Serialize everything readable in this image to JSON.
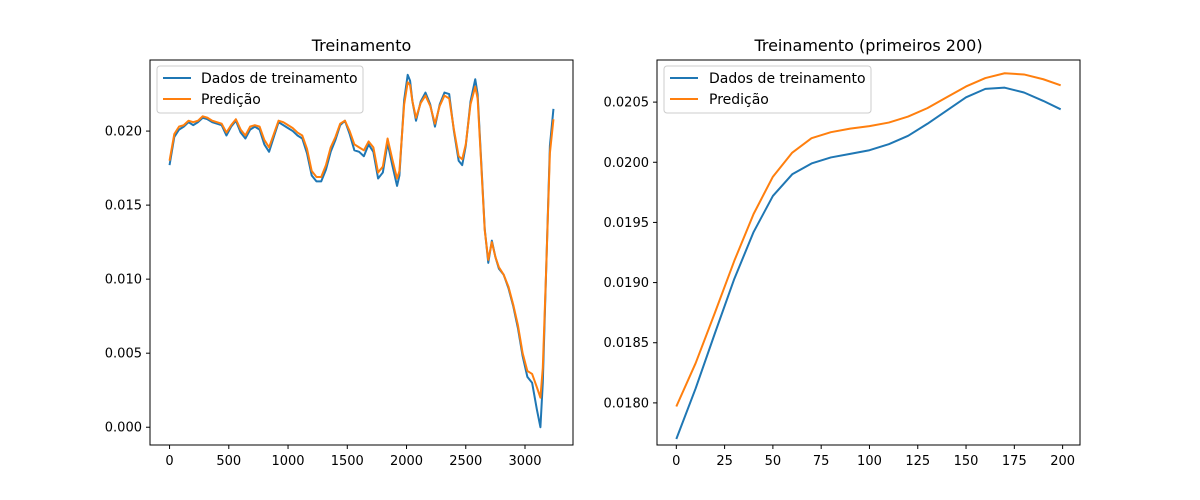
{
  "chart_data": [
    {
      "type": "line",
      "title": "Treinamento",
      "xlabel": "",
      "ylabel": "",
      "xlim": [
        -165,
        3405
      ],
      "ylim": [
        -0.0012,
        0.0248
      ],
      "xticks": [
        0,
        500,
        1000,
        1500,
        2000,
        2500,
        3000
      ],
      "xtick_labels": [
        "0",
        "500",
        "1000",
        "1500",
        "2000",
        "2500",
        "3000"
      ],
      "yticks": [
        0.0,
        0.005,
        0.01,
        0.015,
        0.02
      ],
      "ytick_labels": [
        "0.000",
        "0.005",
        "0.010",
        "0.015",
        "0.020"
      ],
      "grid": false,
      "legend_position": "top-left",
      "series": [
        {
          "name": "Dados de treinamento",
          "color": "#1f77b4",
          "x": [
            0,
            40,
            80,
            120,
            160,
            200,
            240,
            280,
            320,
            360,
            400,
            440,
            480,
            520,
            560,
            600,
            640,
            680,
            720,
            760,
            800,
            840,
            880,
            920,
            960,
            1000,
            1040,
            1080,
            1120,
            1160,
            1200,
            1240,
            1280,
            1320,
            1360,
            1400,
            1440,
            1480,
            1520,
            1560,
            1600,
            1640,
            1680,
            1720,
            1760,
            1800,
            1840,
            1880,
            1920,
            1940,
            1980,
            2010,
            2030,
            2050,
            2080,
            2120,
            2160,
            2200,
            2240,
            2280,
            2320,
            2360,
            2400,
            2440,
            2470,
            2500,
            2540,
            2580,
            2600,
            2630,
            2660,
            2690,
            2720,
            2750,
            2780,
            2820,
            2860,
            2900,
            2940,
            2980,
            3020,
            3060,
            3100,
            3130,
            3150,
            3180,
            3210,
            3240
          ],
          "y": [
            0.0177,
            0.0196,
            0.0201,
            0.0203,
            0.0206,
            0.0204,
            0.0206,
            0.0209,
            0.0208,
            0.0206,
            0.0205,
            0.0204,
            0.0197,
            0.0203,
            0.0207,
            0.0199,
            0.0195,
            0.0201,
            0.0203,
            0.0201,
            0.0191,
            0.0186,
            0.0196,
            0.0206,
            0.0204,
            0.0202,
            0.02,
            0.0197,
            0.0195,
            0.0185,
            0.017,
            0.0166,
            0.0166,
            0.0174,
            0.0186,
            0.0194,
            0.0204,
            0.0207,
            0.0198,
            0.0187,
            0.0186,
            0.0183,
            0.0191,
            0.0186,
            0.0168,
            0.0172,
            0.0192,
            0.0177,
            0.0163,
            0.017,
            0.0221,
            0.0238,
            0.0234,
            0.022,
            0.0207,
            0.022,
            0.0226,
            0.0218,
            0.0203,
            0.0218,
            0.0226,
            0.0225,
            0.02,
            0.018,
            0.0177,
            0.019,
            0.022,
            0.0235,
            0.0225,
            0.018,
            0.0134,
            0.0111,
            0.0126,
            0.0115,
            0.0107,
            0.0103,
            0.0094,
            0.0082,
            0.0067,
            0.0048,
            0.0034,
            0.003,
            0.0012,
            0.0,
            0.003,
            0.011,
            0.019,
            0.0215
          ]
        },
        {
          "name": "Predição",
          "color": "#ff7f0e",
          "x": [
            0,
            40,
            80,
            120,
            160,
            200,
            240,
            280,
            320,
            360,
            400,
            440,
            480,
            520,
            560,
            600,
            640,
            680,
            720,
            760,
            800,
            840,
            880,
            920,
            960,
            1000,
            1040,
            1080,
            1120,
            1160,
            1200,
            1240,
            1280,
            1320,
            1360,
            1400,
            1440,
            1480,
            1520,
            1560,
            1600,
            1640,
            1680,
            1720,
            1760,
            1800,
            1840,
            1880,
            1920,
            1940,
            1980,
            2010,
            2030,
            2050,
            2080,
            2120,
            2160,
            2200,
            2240,
            2280,
            2320,
            2360,
            2400,
            2440,
            2470,
            2500,
            2540,
            2580,
            2600,
            2630,
            2660,
            2690,
            2720,
            2750,
            2780,
            2820,
            2860,
            2900,
            2940,
            2980,
            3020,
            3060,
            3100,
            3130,
            3150,
            3180,
            3210,
            3240
          ],
          "y": [
            0.018,
            0.0198,
            0.0203,
            0.0204,
            0.0207,
            0.0206,
            0.0207,
            0.021,
            0.0209,
            0.0207,
            0.0206,
            0.0205,
            0.0199,
            0.0204,
            0.0208,
            0.0201,
            0.0197,
            0.0203,
            0.0204,
            0.0203,
            0.0194,
            0.0189,
            0.0198,
            0.0207,
            0.0206,
            0.0204,
            0.0202,
            0.0199,
            0.0197,
            0.0188,
            0.0173,
            0.0169,
            0.0169,
            0.0177,
            0.0189,
            0.0196,
            0.0205,
            0.0207,
            0.02,
            0.0191,
            0.0189,
            0.0187,
            0.0193,
            0.0189,
            0.0172,
            0.0176,
            0.0195,
            0.0181,
            0.0168,
            0.0173,
            0.0218,
            0.0233,
            0.0231,
            0.022,
            0.0209,
            0.0219,
            0.0224,
            0.0217,
            0.0205,
            0.0217,
            0.0224,
            0.0222,
            0.0201,
            0.0183,
            0.0181,
            0.0191,
            0.0218,
            0.023,
            0.0222,
            0.0178,
            0.0133,
            0.0113,
            0.0125,
            0.0115,
            0.0108,
            0.0103,
            0.0095,
            0.0083,
            0.0069,
            0.005,
            0.0038,
            0.0036,
            0.0027,
            0.002,
            0.004,
            0.011,
            0.0185,
            0.0208
          ]
        }
      ]
    },
    {
      "type": "line",
      "title": "Treinamento (primeiros 200)",
      "xlabel": "",
      "ylabel": "",
      "xlim": [
        -10,
        209
      ],
      "ylim": [
        0.01765,
        0.02085
      ],
      "xticks": [
        0,
        25,
        50,
        75,
        100,
        125,
        150,
        175,
        200
      ],
      "xtick_labels": [
        "0",
        "25",
        "50",
        "75",
        "100",
        "125",
        "150",
        "175",
        "200"
      ],
      "yticks": [
        0.018,
        0.0185,
        0.019,
        0.0195,
        0.02,
        0.0205
      ],
      "ytick_labels": [
        "0.0180",
        "0.0185",
        "0.0190",
        "0.0195",
        "0.0200",
        "0.0205"
      ],
      "grid": false,
      "legend_position": "top-left",
      "series": [
        {
          "name": "Dados de treinamento",
          "color": "#1f77b4",
          "x": [
            0,
            10,
            20,
            30,
            40,
            50,
            60,
            70,
            80,
            90,
            100,
            110,
            120,
            130,
            140,
            150,
            160,
            170,
            180,
            190,
            199
          ],
          "y": [
            0.0177,
            0.01812,
            0.01858,
            0.01903,
            0.01942,
            0.01972,
            0.0199,
            0.01999,
            0.02004,
            0.02007,
            0.0201,
            0.02015,
            0.02022,
            0.02032,
            0.02043,
            0.02054,
            0.02061,
            0.02062,
            0.02058,
            0.02051,
            0.02044
          ]
        },
        {
          "name": "Predição",
          "color": "#ff7f0e",
          "x": [
            0,
            10,
            20,
            30,
            40,
            50,
            60,
            70,
            80,
            90,
            100,
            110,
            120,
            130,
            140,
            150,
            160,
            170,
            180,
            190,
            199
          ],
          "y": [
            0.01797,
            0.01833,
            0.01875,
            0.01918,
            0.01957,
            0.01988,
            0.02008,
            0.0202,
            0.02025,
            0.02028,
            0.0203,
            0.02033,
            0.02038,
            0.02045,
            0.02054,
            0.02063,
            0.0207,
            0.02074,
            0.02073,
            0.02069,
            0.02064
          ]
        }
      ]
    }
  ]
}
